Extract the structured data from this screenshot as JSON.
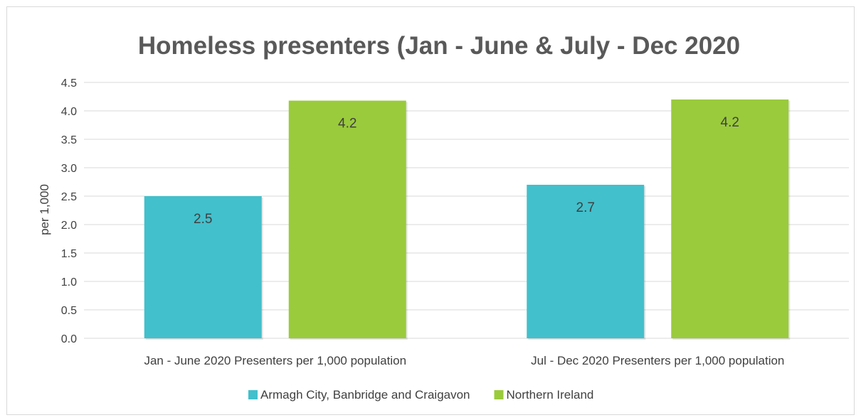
{
  "chart_data": {
    "type": "bar",
    "title": "Homeless presenters (Jan - June & July - Dec 2020",
    "ylabel": "per 1,000",
    "xlabel": "",
    "categories": [
      "Jan - June 2020 Presenters per 1,000 population",
      "Jul - Dec 2020 Presenters per 1,000 population"
    ],
    "series": [
      {
        "name": "Armagh City, Banbridge and Craigavon",
        "values": [
          2.5,
          2.7
        ],
        "labels": [
          "2.5",
          "2.7"
        ],
        "color": "#42c0cc"
      },
      {
        "name": "Northern Ireland",
        "values": [
          4.18,
          4.2
        ],
        "labels": [
          "4.2",
          "4.2"
        ],
        "color": "#9acb3c"
      }
    ],
    "ylim": [
      0,
      4.5
    ],
    "yticks": [
      "0.0",
      "0.5",
      "1.0",
      "1.5",
      "2.0",
      "2.5",
      "3.0",
      "3.5",
      "4.0",
      "4.5"
    ],
    "grid": true,
    "legend_position": "bottom"
  }
}
